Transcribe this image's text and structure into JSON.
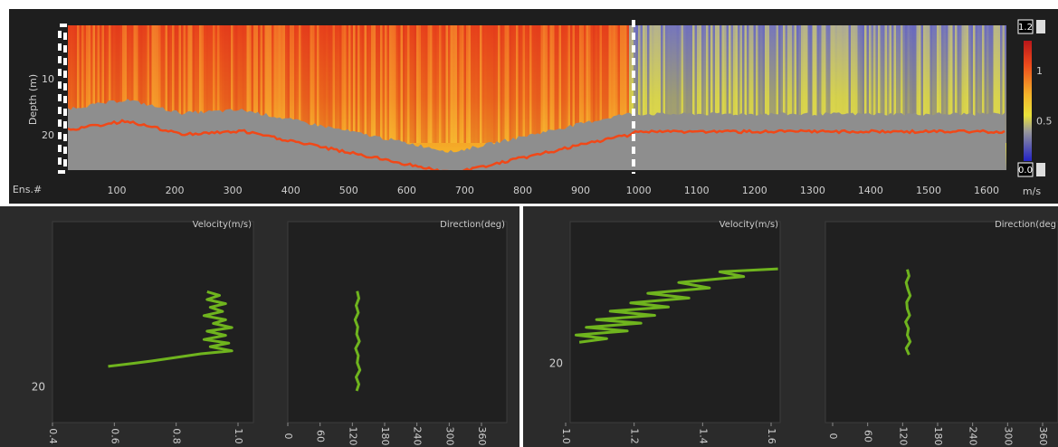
{
  "top_panel": {
    "y_axis_label": "Depth (m)",
    "yticks": [
      10,
      20
    ],
    "x_axis_label": "Ens.#",
    "xticks": [
      100,
      200,
      300,
      400,
      500,
      600,
      700,
      800,
      900,
      1000,
      1100,
      1200,
      1300,
      1400,
      1500,
      1600
    ],
    "colorbar": {
      "max_input": 1.2,
      "ticks": [
        1,
        0.5
      ],
      "min_input": {
        "value": 0,
        "label": "0.0"
      },
      "unit": "m/s"
    }
  },
  "profiles": [
    {
      "velocity": {
        "title": "Velocity(m/s)",
        "xticks": [
          0.4,
          0.6,
          0.8,
          {
            "value": 1,
            "label": "1.0"
          }
        ],
        "ytick": 20,
        "depth": [
          16.5,
          16.0,
          15.6,
          15.0,
          14.4,
          13.9,
          13.2,
          12.6,
          12.0,
          11.3,
          10.6,
          10.0,
          9.3,
          8.7,
          8.0,
          7.3,
          6.6,
          6.0,
          5.3,
          4.6,
          4.0
        ],
        "values": [
          0.58,
          0.66,
          0.72,
          0.8,
          0.88,
          0.98,
          0.91,
          0.97,
          0.89,
          0.96,
          0.9,
          0.98,
          0.92,
          0.96,
          0.89,
          0.95,
          0.91,
          0.96,
          0.9,
          0.94,
          0.9
        ]
      },
      "direction": {
        "title": "Direction(deg)",
        "xticks": [
          0,
          60,
          120,
          180,
          240,
          300,
          360
        ],
        "depth": [
          20.6,
          19.5,
          18.3,
          17.1,
          15.9,
          14.7,
          13.5,
          12.3,
          11.1,
          9.9,
          8.7,
          7.5,
          6.3,
          5.1,
          3.9
        ],
        "values": [
          128,
          132,
          127,
          134,
          129,
          131,
          126,
          133,
          128,
          130,
          125,
          131,
          127,
          132,
          129
        ]
      }
    },
    {
      "velocity": {
        "title": "Velocity(m/s)",
        "xticks": [
          {
            "value": 1,
            "label": "1.0"
          },
          1.2,
          1.4,
          1.6
        ],
        "ytick": 20,
        "depth": [
          16.4,
          15.8,
          15.2,
          14.5,
          13.9,
          13.2,
          12.6,
          11.9,
          11.2,
          10.5,
          9.8,
          9.0,
          8.2,
          7.3,
          6.4,
          5.4,
          4.6,
          4.1
        ],
        "values": [
          1.04,
          1.12,
          1.03,
          1.18,
          1.06,
          1.22,
          1.09,
          1.26,
          1.13,
          1.3,
          1.19,
          1.36,
          1.24,
          1.42,
          1.33,
          1.52,
          1.45,
          1.62
        ]
      },
      "direction": {
        "title": "Direction(deg",
        "xticks": [
          0,
          60,
          120,
          180,
          240,
          300,
          360
        ],
        "depth": [
          18.5,
          17.4,
          16.3,
          15.2,
          14.1,
          13.0,
          11.9,
          10.8,
          9.7,
          8.6,
          7.5,
          6.4,
          5.3,
          4.2
        ],
        "values": [
          131,
          126,
          133,
          128,
          130,
          125,
          132,
          128,
          127,
          133,
          129,
          126,
          131,
          128
        ]
      }
    }
  ]
}
